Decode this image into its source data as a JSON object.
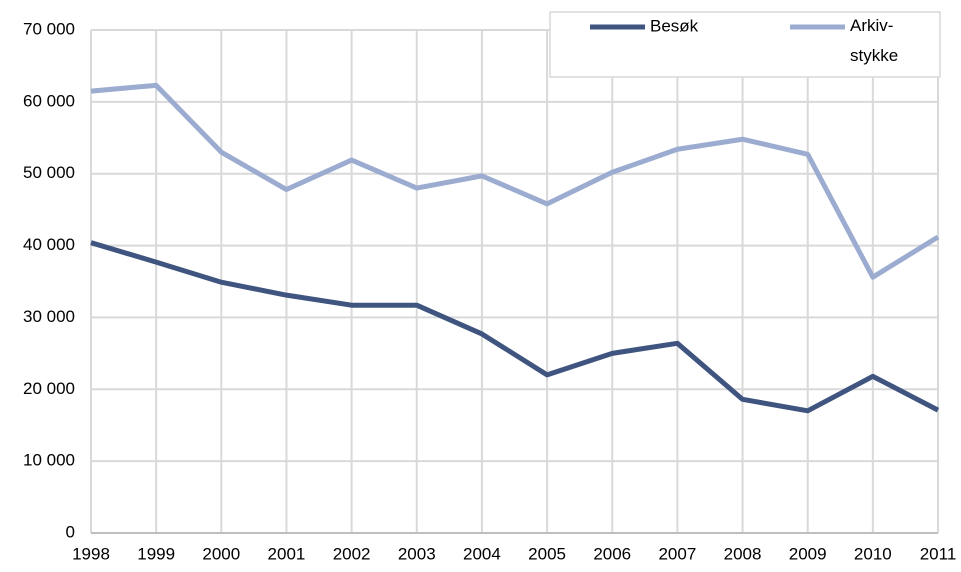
{
  "chart_data": {
    "type": "line",
    "categories": [
      "1998",
      "1999",
      "2000",
      "2001",
      "2002",
      "2003",
      "2004",
      "2005",
      "2006",
      "2007",
      "2008",
      "2009",
      "2010",
      "2011"
    ],
    "series": [
      {
        "name": "Besøk",
        "color": "#3f5580",
        "values": [
          40400,
          37700,
          34900,
          33100,
          31700,
          31700,
          27700,
          22000,
          25000,
          26400,
          18600,
          17000,
          21800,
          17100
        ]
      },
      {
        "name": "Arkiv-stykke",
        "color": "#9bacd0",
        "values": [
          61500,
          62300,
          53000,
          47800,
          51900,
          48000,
          49700,
          45800,
          50200,
          53400,
          54800,
          52700,
          35600,
          41200
        ]
      }
    ],
    "ylim": [
      0,
      70000
    ],
    "yticks": [
      0,
      {
        "value": 10000,
        "label": "10 000"
      },
      {
        "value": 20000,
        "label": "20 000"
      },
      {
        "value": 30000,
        "label": "30 000"
      },
      {
        "value": 40000,
        "label": "40 000"
      },
      {
        "value": 50000,
        "label": "50 000"
      },
      {
        "value": 60000,
        "label": "60 000"
      },
      {
        "value": 70000,
        "label": "70 000"
      }
    ],
    "grid": true,
    "legend": "top-right"
  }
}
